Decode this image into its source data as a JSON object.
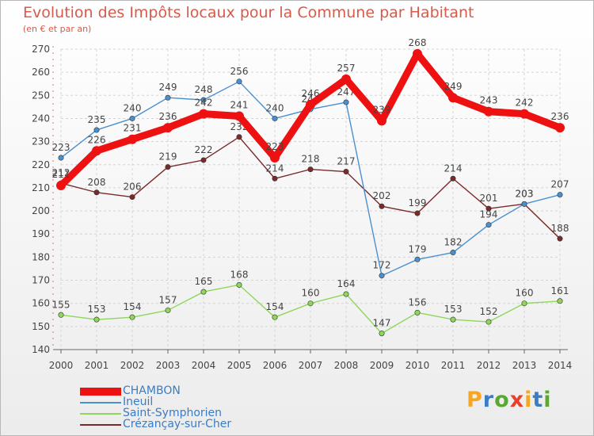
{
  "title": "Evolution des Impôts locaux pour la Commune par Habitant",
  "subtitle": "(en € et par an)",
  "logo": {
    "letters": [
      "P",
      "r",
      "o",
      "x",
      "i",
      "t",
      "i"
    ],
    "colors": [
      "#f5a623",
      "#3a7cc5",
      "#5aa832",
      "#e8402a",
      "#f5a623",
      "#3a7cc5",
      "#5aa832"
    ]
  },
  "chart_data": {
    "type": "line",
    "title": "Evolution des Impôts locaux pour la Commune par Habitant",
    "xlabel": "",
    "ylabel": "",
    "x": [
      "2000",
      "2001",
      "2002",
      "2003",
      "2004",
      "2005",
      "2006",
      "2007",
      "2008",
      "2009",
      "2010",
      "2011",
      "2012",
      "2013",
      "2014"
    ],
    "yticks": [
      "140",
      "150",
      "160",
      "170",
      "180",
      "190",
      "200",
      "210",
      "220",
      "230",
      "240",
      "250",
      "260",
      "270"
    ],
    "ylim": [
      140,
      270
    ],
    "grid": true,
    "legend": "bottom-left",
    "series": [
      {
        "name": "CHAMBON",
        "color": "#ee1111",
        "values": [
          211,
          226,
          231,
          236,
          242,
          241,
          223,
          246,
          257,
          239,
          268,
          249,
          243,
          242,
          236
        ],
        "labels": [
          "211",
          "226",
          "231",
          "236",
          "242",
          "241",
          "223",
          "246",
          "257",
          "239",
          "268",
          "249",
          "243",
          "242",
          "236"
        ]
      },
      {
        "name": "Ineuil",
        "color": "#4a90d0",
        "values": [
          223,
          235,
          240,
          249,
          248,
          256,
          240,
          244,
          247,
          172,
          179,
          182,
          194,
          203,
          207
        ],
        "labels": [
          "223",
          "235",
          "240",
          "249",
          "248",
          "256",
          "240",
          "244",
          "247",
          "172",
          "179",
          "182",
          "194",
          "203",
          "207"
        ]
      },
      {
        "name": "Saint-Symphorien",
        "color": "#8fd65a",
        "values": [
          155,
          153,
          154,
          157,
          165,
          168,
          154,
          160,
          164,
          147,
          156,
          153,
          152,
          160,
          161
        ],
        "labels": [
          "155",
          "153",
          "154",
          "157",
          "165",
          "168",
          "154",
          "160",
          "164",
          "147",
          "156",
          "153",
          "152",
          "160",
          "161"
        ]
      },
      {
        "name": "Crézançay-sur-Cher",
        "color": "#7a2a2a",
        "values": [
          212,
          208,
          206,
          219,
          222,
          232,
          214,
          218,
          217,
          202,
          199,
          214,
          201,
          203,
          188
        ],
        "labels": [
          "212",
          "208",
          "206",
          "219",
          "222",
          "232",
          "214",
          "218",
          "217",
          "202",
          "199",
          "214",
          "201",
          "203",
          "188"
        ]
      }
    ]
  }
}
